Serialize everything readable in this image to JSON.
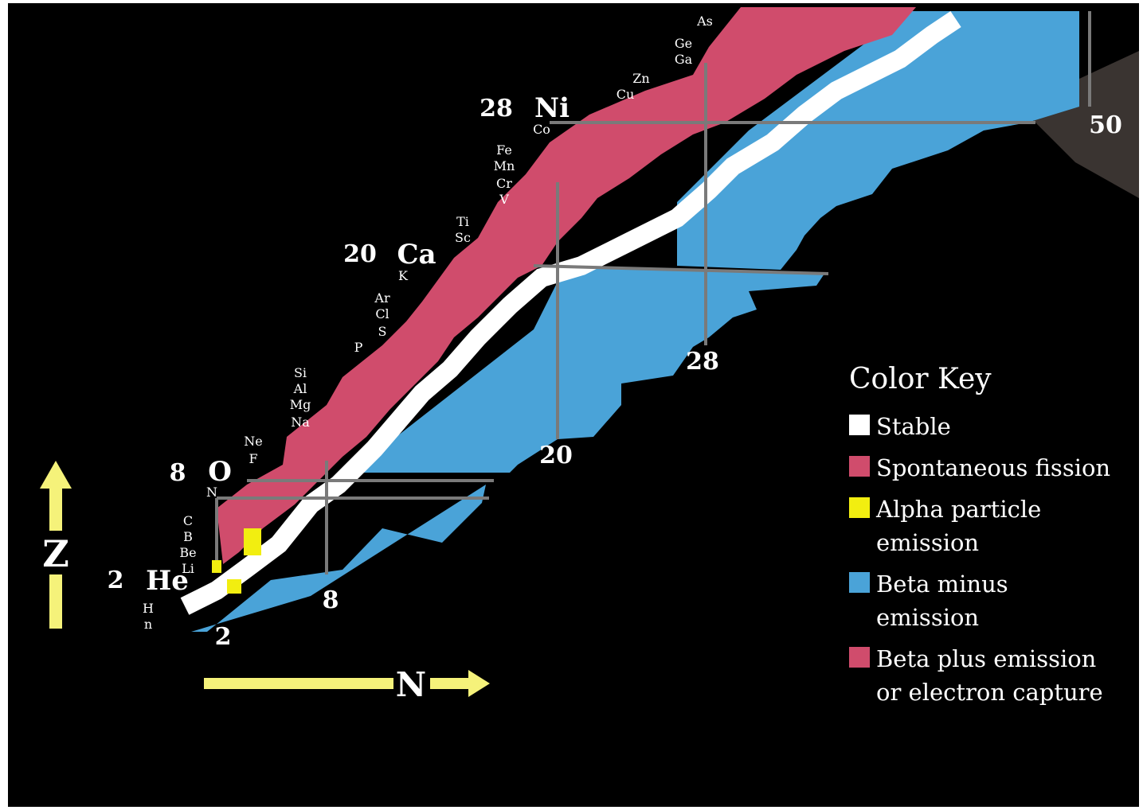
{
  "colors": {
    "stable": "#ffffff",
    "fission": "#d04c6c",
    "alpha": "#f2ee10",
    "beta_minus": "#4aa3d8",
    "beta_plus": "#d04c6c",
    "arrow": "#f5f27a",
    "magic_line": "#7a7a7a",
    "background": "#000000"
  },
  "axes": {
    "z_label": "Z",
    "n_label": "N"
  },
  "magic_numbers": {
    "z": [
      "2",
      "8",
      "20",
      "28"
    ],
    "n": [
      "2",
      "8",
      "20",
      "28",
      "50"
    ]
  },
  "element_labels": {
    "magic": [
      "He",
      "O",
      "Ca",
      "Ni"
    ],
    "small": [
      "n",
      "H",
      "Li",
      "Be",
      "B",
      "C",
      "N",
      "F",
      "Ne",
      "Na",
      "Mg",
      "Al",
      "Si",
      "P",
      "S",
      "Cl",
      "Ar",
      "K",
      "Sc",
      "Ti",
      "V",
      "Cr",
      "Mn",
      "Fe",
      "Co",
      "Cu",
      "Zn",
      "Ga",
      "Ge",
      "As"
    ]
  },
  "legend": {
    "title": "Color Key",
    "items": [
      {
        "label": "Stable",
        "color": "#ffffff"
      },
      {
        "label": "Spontaneous fission",
        "color": "#d04c6c"
      },
      {
        "label": "Alpha particle emission",
        "color": "#f2ee10"
      },
      {
        "label": "Beta minus emission",
        "color": "#4aa3d8"
      },
      {
        "label": "Beta plus emission or electron capture",
        "color": "#d04c6c"
      }
    ]
  }
}
